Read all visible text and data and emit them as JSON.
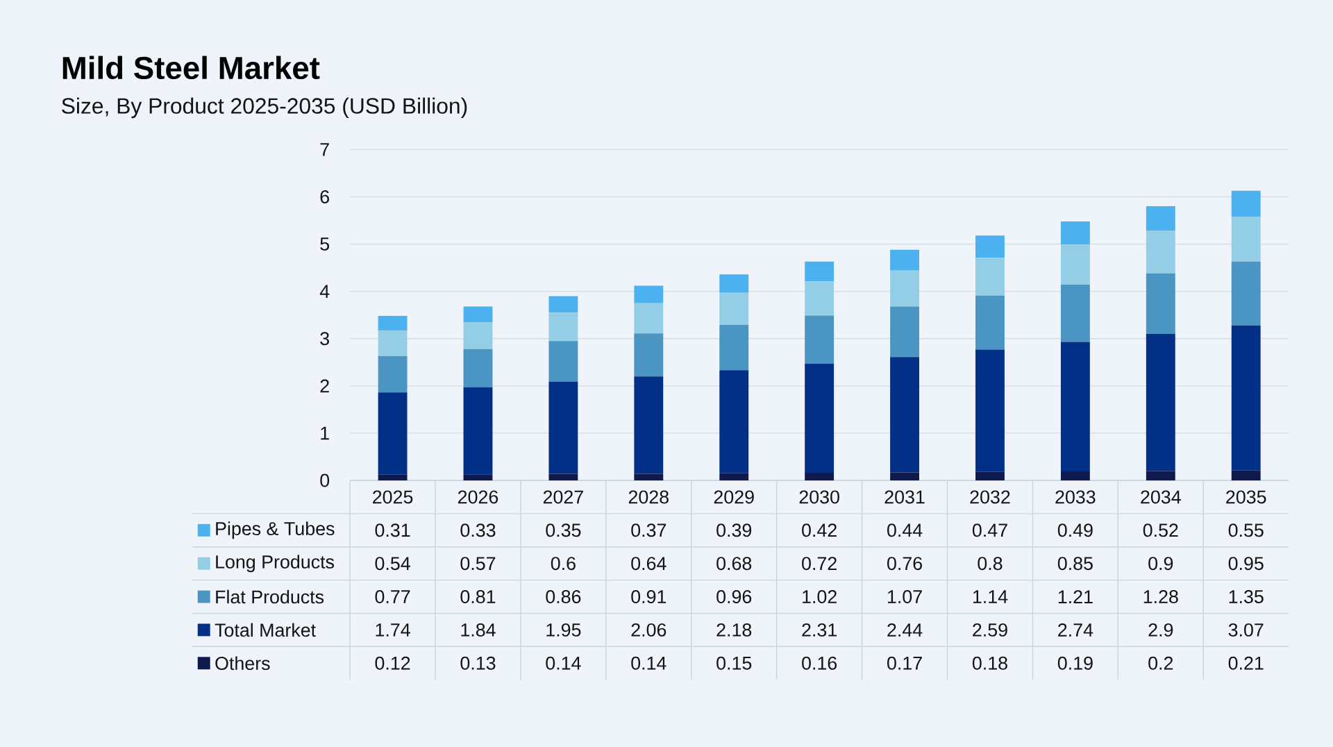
{
  "chart_data": {
    "type": "bar",
    "title": "Mild Steel Market",
    "subtitle": "Size, By Product 2025-2035 (USD Billion)",
    "categories": [
      "2025",
      "2026",
      "2027",
      "2028",
      "2029",
      "2030",
      "2031",
      "2032",
      "2033",
      "2034",
      "2035"
    ],
    "stacked": true,
    "series": [
      {
        "name": "Others",
        "color": "#0e1a4e",
        "values": [
          0.12,
          0.13,
          0.14,
          0.14,
          0.15,
          0.16,
          0.17,
          0.18,
          0.19,
          0.2,
          0.21
        ]
      },
      {
        "name": "Total Market",
        "color": "#023087",
        "values": [
          1.74,
          1.84,
          1.95,
          2.06,
          2.18,
          2.31,
          2.44,
          2.59,
          2.74,
          2.9,
          3.07
        ]
      },
      {
        "name": "Flat Products",
        "color": "#4a95c1",
        "values": [
          0.77,
          0.81,
          0.86,
          0.91,
          0.96,
          1.02,
          1.07,
          1.14,
          1.21,
          1.28,
          1.35
        ]
      },
      {
        "name": "Long Products",
        "color": "#94cde6",
        "values": [
          0.54,
          0.57,
          0.6,
          0.64,
          0.68,
          0.72,
          0.76,
          0.8,
          0.85,
          0.9,
          0.95
        ]
      },
      {
        "name": "Pipes & Tubes",
        "color": "#4cb2ef",
        "values": [
          0.31,
          0.33,
          0.35,
          0.37,
          0.39,
          0.42,
          0.44,
          0.47,
          0.49,
          0.52,
          0.55
        ]
      }
    ],
    "ylim": [
      0,
      7
    ],
    "yticks": [
      0,
      1,
      2,
      3,
      4,
      5,
      6,
      7
    ],
    "grid": "y",
    "legend": "bottom left",
    "data_labels": true
  }
}
